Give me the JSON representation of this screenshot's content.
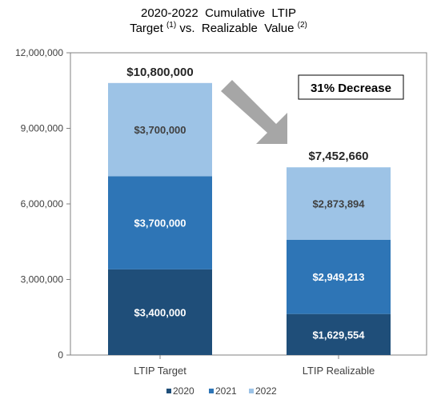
{
  "chart_data": {
    "type": "bar",
    "stacked": true,
    "title_parts": [
      {
        "text": "2020-2022  Cumulative  LTIP",
        "line": 1
      },
      {
        "text": "Target ",
        "line": 2
      },
      {
        "text": "(1)",
        "line": 2,
        "sup": true
      },
      {
        "text": " vs.  Realizable  Value ",
        "line": 2
      },
      {
        "text": "(2)",
        "line": 2,
        "sup": true
      }
    ],
    "categories": [
      "LTIP Target",
      "LTIP Realizable"
    ],
    "series": [
      {
        "name": "2020",
        "color": "#1F4E79",
        "values": [
          3400000,
          1629554
        ],
        "labels": [
          "$3,400,000",
          "$1,629,554"
        ],
        "label_color": "#ffffff"
      },
      {
        "name": "2021",
        "color": "#2E75B6",
        "values": [
          3700000,
          2949213
        ],
        "labels": [
          "$3,700,000",
          "$2,949,213"
        ],
        "label_color": "#ffffff"
      },
      {
        "name": "2022",
        "color": "#9DC3E6",
        "values": [
          3700000,
          2873894
        ],
        "labels": [
          "$3,700,000",
          "$2,873,894"
        ],
        "label_color": "#404040"
      }
    ],
    "totals": [
      "$10,800,000",
      "$7,452,660"
    ],
    "ylim": [
      0,
      12000000
    ],
    "yticks": [
      0,
      3000000,
      6000000,
      9000000,
      12000000
    ],
    "ytick_labels": [
      "0",
      "3,000,000",
      "6,000,000",
      "9,000,000",
      "12,000,000"
    ],
    "legend_position": "bottom",
    "annotation": {
      "text": "31% Decrease",
      "arrow": "down-right"
    }
  }
}
